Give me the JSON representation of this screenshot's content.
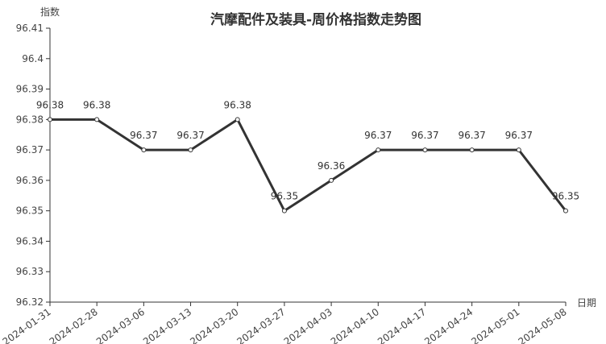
{
  "chart_data": {
    "type": "line",
    "title": "汽摩配件及装具-周价格指数走势图",
    "xlabel": "日期",
    "ylabel": "指数",
    "categories": [
      "2024-01-31",
      "2024-02-28",
      "2024-03-06",
      "2024-03-13",
      "2024-03-20",
      "2024-03-27",
      "2024-04-03",
      "2024-04-10",
      "2024-04-17",
      "2024-04-24",
      "2024-05-01",
      "2024-05-08"
    ],
    "values": [
      96.38,
      96.38,
      96.37,
      96.37,
      96.38,
      96.35,
      96.36,
      96.37,
      96.37,
      96.37,
      96.37,
      96.35
    ],
    "data_labels": [
      "96.38",
      "96.38",
      "96.37",
      "96.37",
      "96.38",
      "96.35",
      "96.36",
      "96.37",
      "96.37",
      "96.37",
      "96.37",
      "96.35"
    ],
    "ylim": [
      96.32,
      96.41
    ],
    "yticks": [
      "96.32",
      "96.33",
      "96.34",
      "96.35",
      "96.36",
      "96.37",
      "96.38",
      "96.39",
      "96.4",
      "96.41"
    ],
    "grid": false,
    "line_color": "#333333"
  }
}
